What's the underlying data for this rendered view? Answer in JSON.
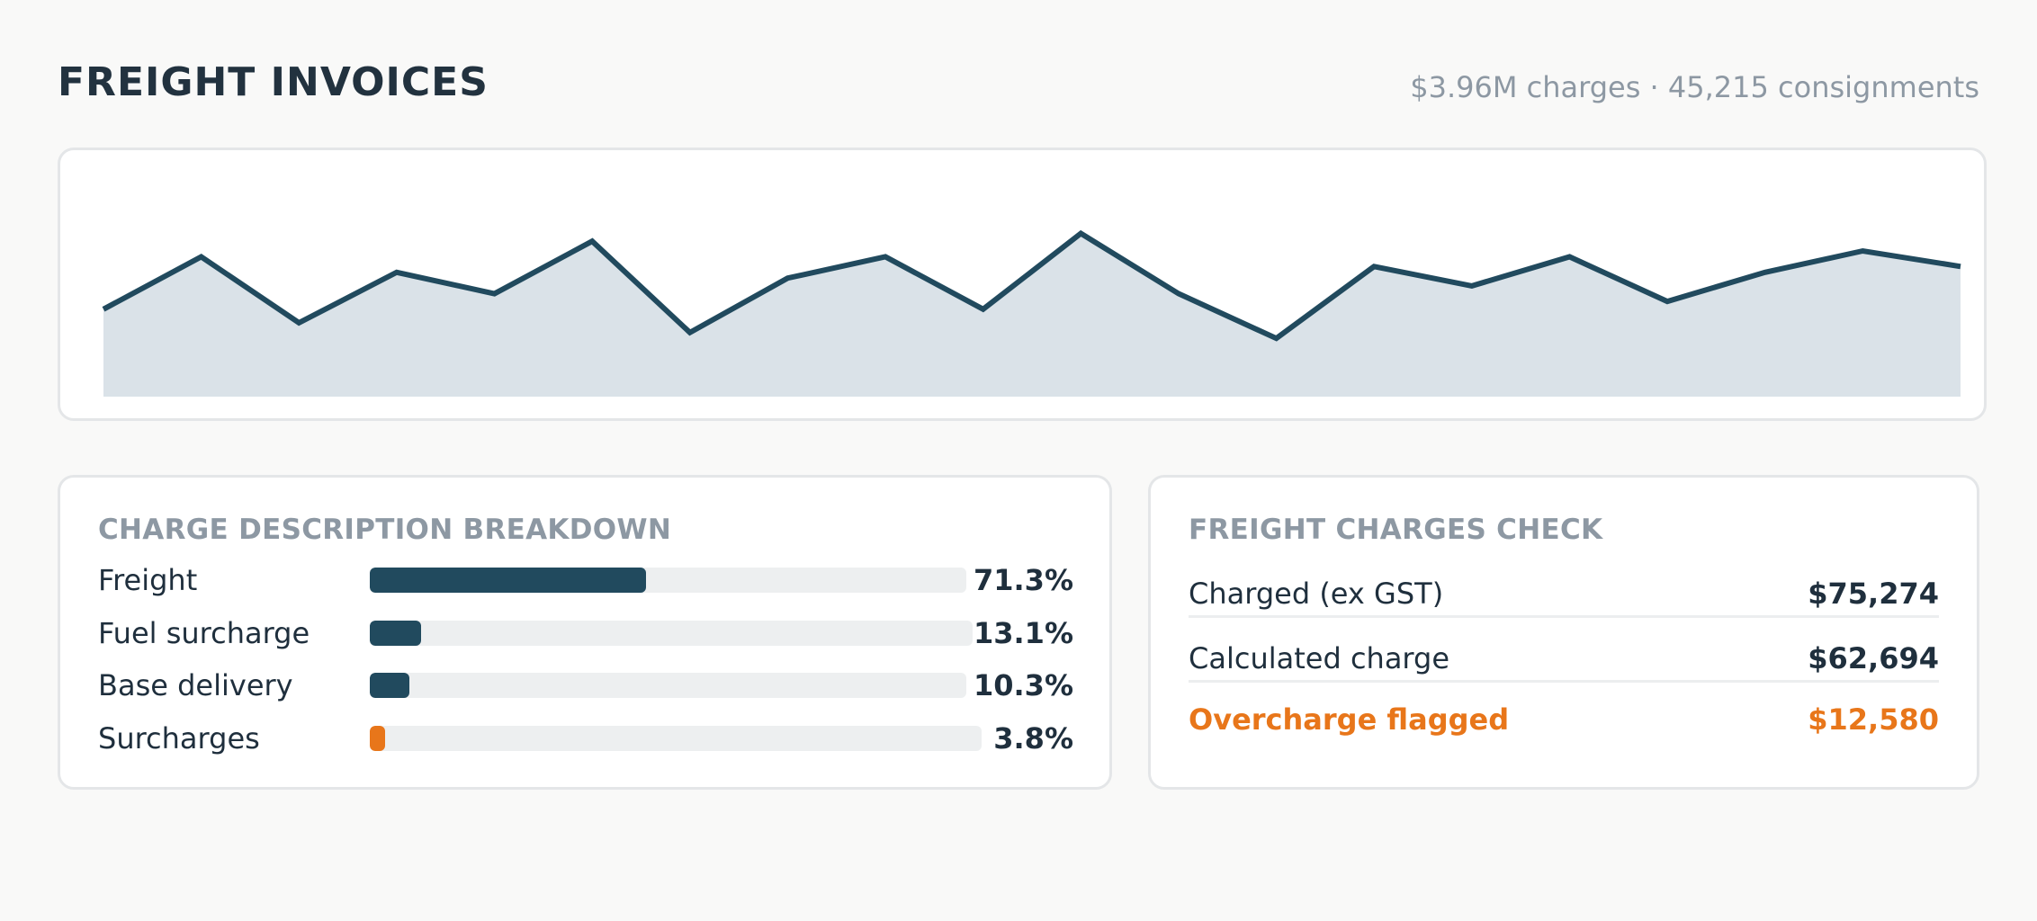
{
  "header": {
    "title": "FREIGHT INVOICES",
    "summary": "$3.96M charges · 45,215 consignments"
  },
  "colors": {
    "accent": "#214a5e",
    "area_fill": "#dae2e8",
    "flag": "#e8761a"
  },
  "chart_data": {
    "type": "area",
    "title": "",
    "xlabel": "",
    "ylabel": "",
    "grid": false,
    "legend": "none",
    "ylim": [
      0,
      100
    ],
    "series": [
      {
        "values": [
          45,
          72,
          38,
          64,
          53,
          80,
          33,
          61,
          72,
          45,
          84,
          53,
          30,
          67,
          57,
          72,
          49,
          64,
          75,
          67
        ]
      }
    ]
  },
  "breakdown": {
    "title": "CHARGE DESCRIPTION BREAKDOWN",
    "items": [
      {
        "label": "Freight",
        "value": "71.3%",
        "pct": 71.3,
        "color": "#214a5e"
      },
      {
        "label": "Fuel surcharge",
        "value": "13.1%",
        "pct": 13.1,
        "color": "#214a5e"
      },
      {
        "label": "Base delivery",
        "value": "10.3%",
        "pct": 10.3,
        "color": "#214a5e"
      },
      {
        "label": "Surcharges",
        "value": "3.8%",
        "pct": 3.8,
        "color": "#e8761a"
      }
    ]
  },
  "check": {
    "title": "FREIGHT CHARGES CHECK",
    "rows": [
      {
        "label": "Charged (ex GST)",
        "value": "$75,274"
      },
      {
        "label": "Calculated charge",
        "value": "$62,694"
      },
      {
        "label": "Overcharge flagged",
        "value": "$12,580"
      }
    ]
  }
}
